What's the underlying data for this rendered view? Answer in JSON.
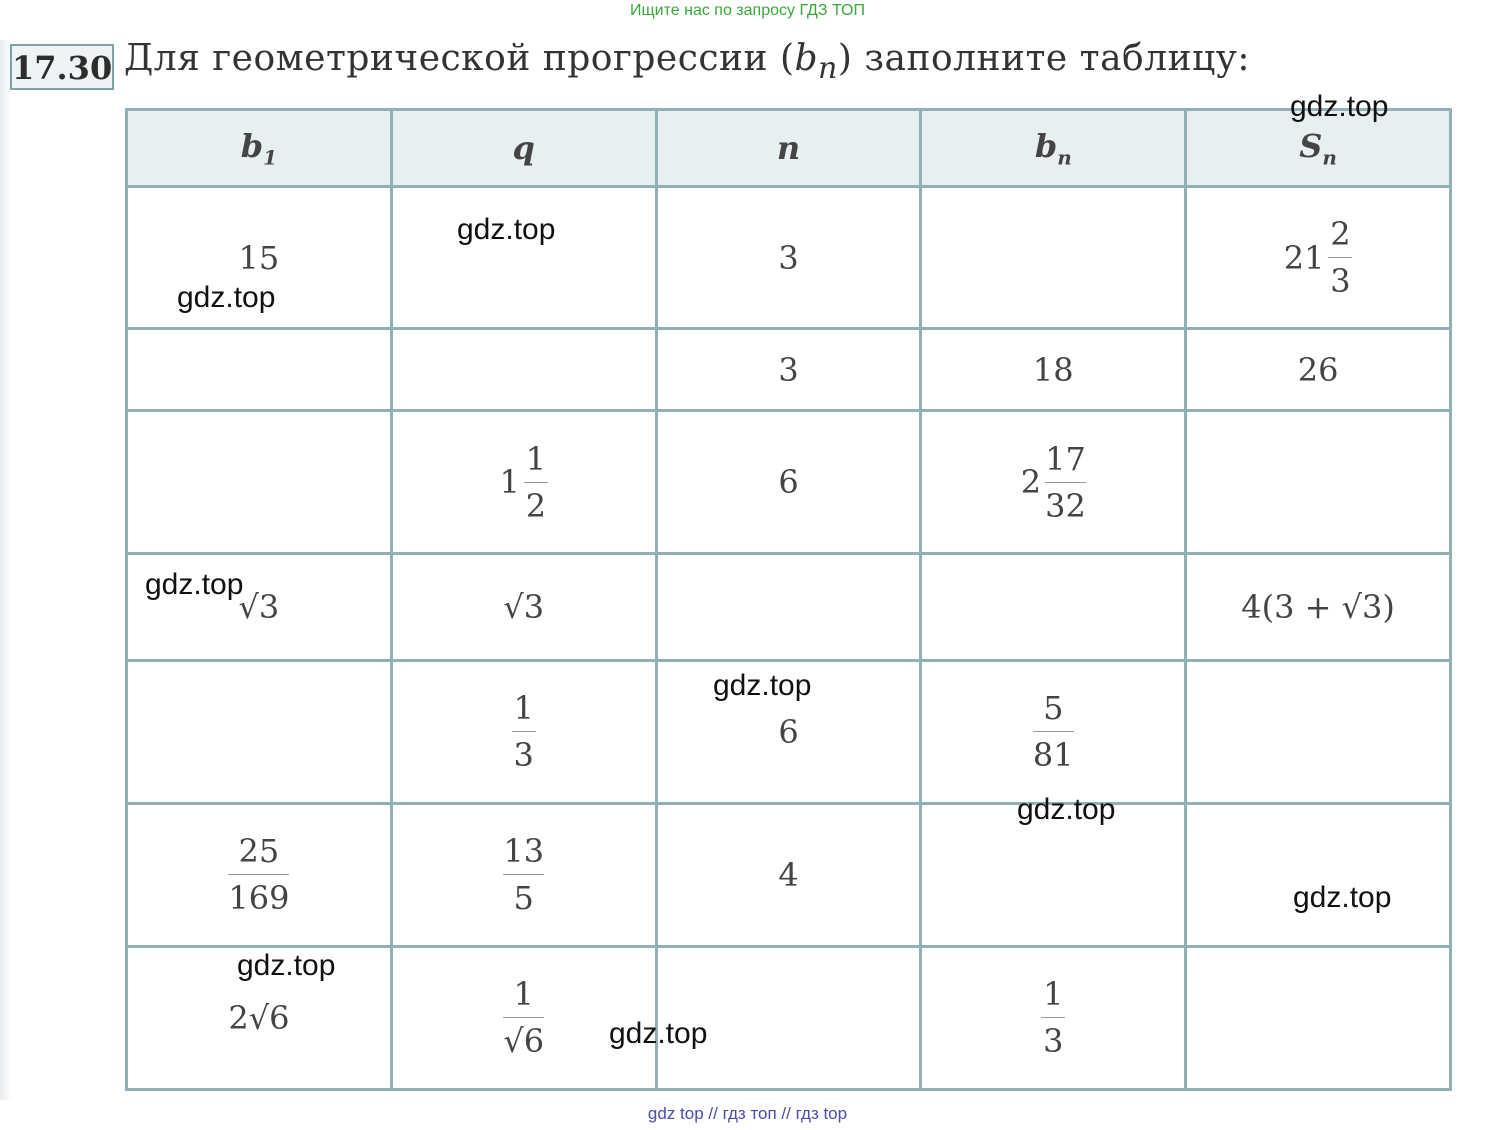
{
  "banner": "Ищите нас по запросу ГДЗ ТОП",
  "problem": {
    "number": "17.30",
    "title_before": "Для геометрической прогрессии (",
    "title_var": "b",
    "title_sub": "n",
    "title_after": ") заполните таблицу:"
  },
  "table": {
    "headers": [
      {
        "base": "b",
        "sub": "1"
      },
      {
        "base": "q",
        "sub": ""
      },
      {
        "base": "n",
        "sub": ""
      },
      {
        "base": "b",
        "sub": "n"
      },
      {
        "base": "S",
        "sub": "n"
      }
    ],
    "rows": [
      {
        "b1": "15",
        "q": "",
        "n": "3",
        "bn": "",
        "sn_whole": "21",
        "sn_num": "2",
        "sn_den": "3"
      },
      {
        "b1": "",
        "q": "",
        "n": "3",
        "bn": "18",
        "sn": "26"
      },
      {
        "b1": "",
        "q_whole": "1",
        "q_num": "1",
        "q_den": "2",
        "n": "6",
        "bn_whole": "2",
        "bn_num": "17",
        "bn_den": "32",
        "sn": ""
      },
      {
        "b1": "√3",
        "q": "√3",
        "n": "",
        "bn": "",
        "sn": "4(3 + √3)"
      },
      {
        "b1": "",
        "q_num": "1",
        "q_den": "3",
        "n": "6",
        "bn_num": "5",
        "bn_den": "81",
        "sn": ""
      },
      {
        "b1_num": "25",
        "b1_den": "169",
        "q_num": "13",
        "q_den": "5",
        "n": "4",
        "bn": "",
        "sn": ""
      },
      {
        "b1": "2√6",
        "q_num": "1",
        "q_den": "√6",
        "n": "",
        "bn_num": "1",
        "bn_den": "3",
        "sn": ""
      }
    ]
  },
  "watermarks": [
    "gdz.top",
    "gdz.top",
    "gdz.top",
    "gdz.top",
    "gdz.top",
    "gdz.top",
    "gdz.top",
    "gdz.top",
    "gdz.top",
    "gdz.top"
  ],
  "footer": "gdz top  //  гдз топ  //  гдз top"
}
